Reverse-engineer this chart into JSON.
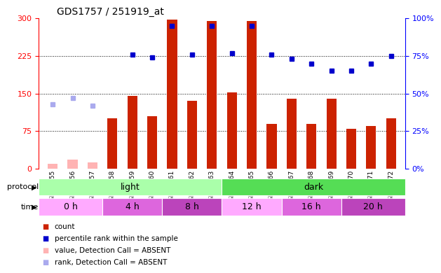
{
  "title": "GDS1757 / 251919_at",
  "samples": [
    "GSM77055",
    "GSM77056",
    "GSM77057",
    "GSM77058",
    "GSM77059",
    "GSM77060",
    "GSM77061",
    "GSM77062",
    "GSM77063",
    "GSM77064",
    "GSM77065",
    "GSM77066",
    "GSM77067",
    "GSM77068",
    "GSM77069",
    "GSM77070",
    "GSM77071",
    "GSM77072"
  ],
  "count_values": [
    10,
    18,
    12,
    100,
    145,
    105,
    298,
    135,
    295,
    152,
    295,
    90,
    140,
    90,
    140,
    80,
    85,
    100
  ],
  "count_absent": [
    true,
    true,
    true,
    false,
    false,
    false,
    false,
    false,
    false,
    false,
    false,
    false,
    false,
    false,
    false,
    false,
    false,
    false
  ],
  "rank_values_pct": [
    null,
    null,
    null,
    null,
    76,
    74,
    95,
    76,
    95,
    77,
    95,
    76,
    73,
    70,
    65,
    65,
    70,
    75
  ],
  "rank_absent_pct": [
    43,
    47,
    42,
    null,
    null,
    null,
    null,
    null,
    null,
    null,
    null,
    null,
    null,
    null,
    null,
    null,
    null,
    null
  ],
  "ylim_left": [
    0,
    300
  ],
  "ylim_right": [
    0,
    100
  ],
  "yticks_left": [
    0,
    75,
    150,
    225,
    300
  ],
  "yticks_right": [
    0,
    25,
    50,
    75,
    100
  ],
  "protocol_groups": [
    {
      "label": "light",
      "start": 0,
      "end": 9,
      "color": "#AAFFAA"
    },
    {
      "label": "dark",
      "start": 9,
      "end": 18,
      "color": "#55DD55"
    }
  ],
  "time_groups": [
    {
      "label": "0 h",
      "start": 0,
      "end": 3,
      "color": "#FFAAFF"
    },
    {
      "label": "4 h",
      "start": 3,
      "end": 6,
      "color": "#DD66DD"
    },
    {
      "label": "8 h",
      "start": 6,
      "end": 9,
      "color": "#BB44BB"
    },
    {
      "label": "12 h",
      "start": 9,
      "end": 12,
      "color": "#FFAAFF"
    },
    {
      "label": "16 h",
      "start": 12,
      "end": 15,
      "color": "#DD66DD"
    },
    {
      "label": "20 h",
      "start": 15,
      "end": 18,
      "color": "#BB44BB"
    }
  ],
  "bar_color_present": "#CC2200",
  "bar_color_absent": "#FFB3B3",
  "rank_color_present": "#0000CC",
  "rank_color_absent": "#AAAAEE",
  "bar_width": 0.5,
  "n_samples": 18
}
